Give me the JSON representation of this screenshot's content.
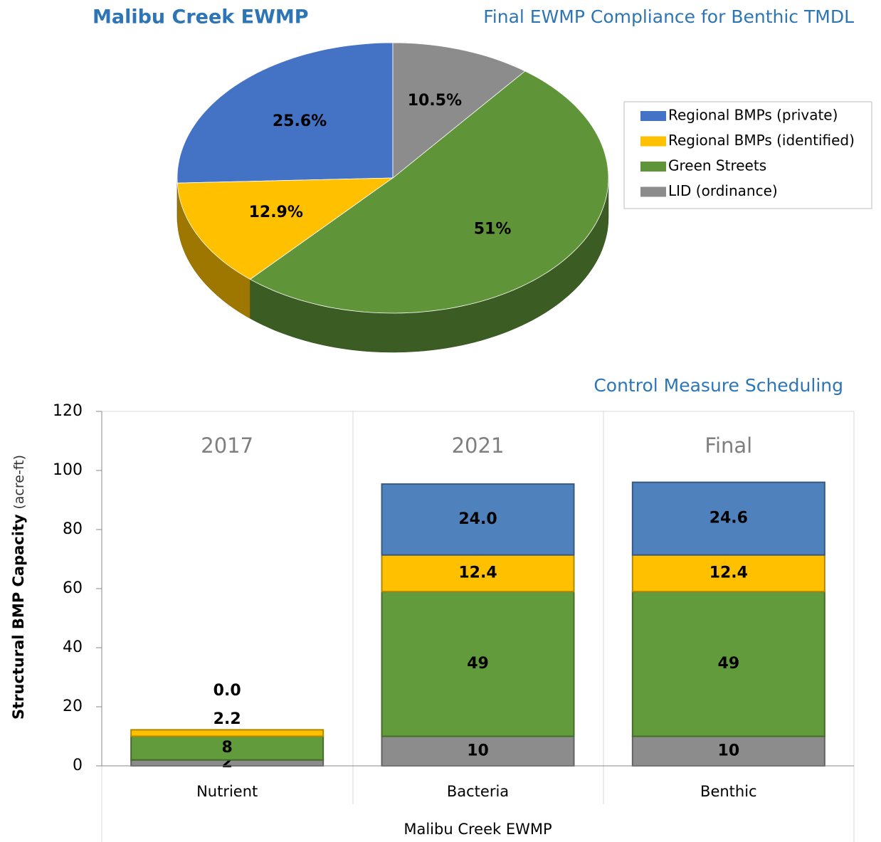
{
  "page_title": "Malibu Creek EWMP",
  "chart_data": [
    {
      "type": "pie",
      "title": "Final EWMP Compliance for Benthic TMDL",
      "categories": [
        "Regional BMPs (private)",
        "Regional BMPs (identified)",
        "Green Streets",
        "LID (ordinance)"
      ],
      "values": [
        25.6,
        12.9,
        51,
        10.5
      ],
      "value_labels": [
        "25.6%",
        "12.9%",
        "51%",
        "10.5%"
      ],
      "colors": [
        "#4472c4",
        "#ffc000",
        "#5f9538",
        "#8c8c8c"
      ],
      "legend": "right"
    },
    {
      "type": "bar",
      "stacked": true,
      "title": "Control Measure Scheduling",
      "y_label": "Structural BMP Capacity",
      "y_label_unit": "(acre-ft)",
      "x_label": "Malibu Creek EWMP",
      "categories": [
        "Nutrient",
        "Bacteria",
        "Benthic"
      ],
      "group_labels": [
        "2017",
        "2021",
        "Final"
      ],
      "series": [
        {
          "color": "#8c8c8c",
          "values": [
            2,
            10,
            10
          ]
        },
        {
          "color": "#629b3b",
          "values": [
            8,
            49,
            49
          ]
        },
        {
          "color": "#ffc000",
          "values": [
            2.2,
            12.4,
            12.4
          ]
        },
        {
          "color": "#4f81bd",
          "values": [
            0,
            24,
            24.6
          ],
          "value_labels": [
            "0.0",
            "24.0",
            "24.6"
          ]
        }
      ],
      "ylim": [
        0,
        120
      ],
      "yticks": [
        0,
        20,
        40,
        60,
        80,
        100,
        120
      ]
    }
  ]
}
